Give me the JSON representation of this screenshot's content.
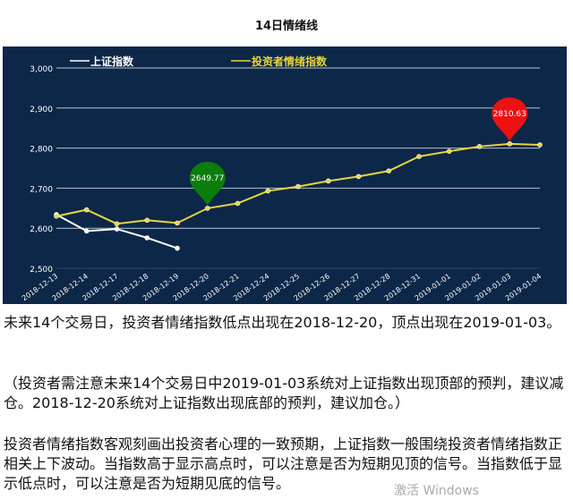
{
  "chart_data": {
    "type": "line",
    "title": "14日情绪线",
    "xlabel": "",
    "ylabel": "",
    "ylim": [
      2500,
      3000
    ],
    "yticks": [
      "2,500",
      "2,600",
      "2,700",
      "2,800",
      "2,900",
      "3,000"
    ],
    "grid": true,
    "legend_position": "top",
    "categories": [
      "2018-12-13",
      "2018-12-14",
      "2018-12-17",
      "2018-12-18",
      "2018-12-19",
      "2018-12-20",
      "2018-12-21",
      "2018-12-24",
      "2018-12-25",
      "2018-12-26",
      "2018-12-27",
      "2018-12-28",
      "2018-12-31",
      "2019-01-01",
      "2019-01-02",
      "2019-01-03",
      "2019-01-04"
    ],
    "series": [
      {
        "name": "上证指数",
        "color": "#ffffff",
        "values": [
          2634,
          2593,
          2598,
          2576,
          2550,
          null,
          null,
          null,
          null,
          null,
          null,
          null,
          null,
          null,
          null,
          null,
          null
        ]
      },
      {
        "name": "投资者情绪指数",
        "color": "#e8d53a",
        "values": [
          2630,
          2646,
          2611,
          2620,
          2613,
          2649.77,
          2662,
          2693,
          2704,
          2718,
          2729,
          2743,
          2779,
          2792,
          2804,
          2810.63,
          2808
        ]
      }
    ],
    "markers": [
      {
        "label": "2649.77",
        "category": "2018-12-20",
        "color": "#0a7d0a"
      },
      {
        "label": "2810.63",
        "category": "2019-01-03",
        "color": "#ee1111"
      }
    ]
  },
  "text": {
    "p1": "未来14个交易日，投资者情绪指数低点出现在2018-12-20，顶点出现在2019-01-03。",
    "p2": "（投资者需注意未来14个交易日中2019-01-03系统对上证指数出现顶部的预判，建议减仓。2018-12-20系统对上证指数出现底部的预判，建议加仓。）",
    "p3": "投资者情绪指数客观刻画出投资者心理的一致预期，上证指数一般围绕投资者情绪指数正相关上下波动。当指数高于显示高点时，可以注意是否为短期见顶的信号。当指数低于显示低点时，可以注意是否为短期见底的信号。",
    "watermark": "激活 Windows"
  }
}
